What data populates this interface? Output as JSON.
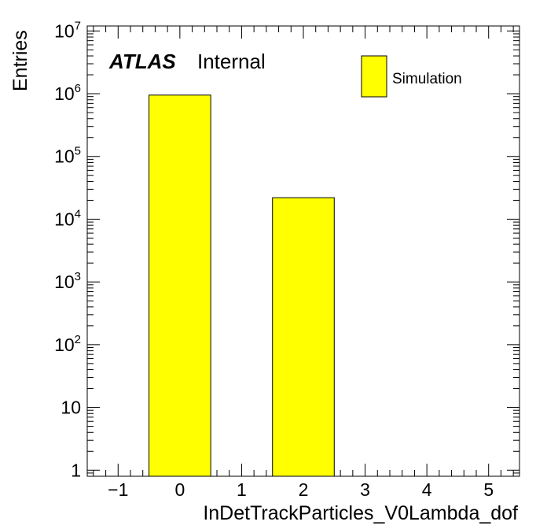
{
  "chart_data": {
    "type": "bar",
    "xlabel": "InDetTrackParticles_V0Lambda_dof",
    "ylabel": "Entries",
    "xlim": [
      -1.5,
      5.5
    ],
    "ylim": [
      0.8,
      12000000
    ],
    "yscale": "log",
    "bin_width": 1,
    "x": [
      0,
      2
    ],
    "values": [
      950000,
      22000
    ],
    "series": [
      {
        "name": "Simulation",
        "color": "#ffff00",
        "values": [
          950000,
          22000
        ]
      }
    ],
    "x_ticks": [
      "−1",
      "0",
      "1",
      "2",
      "3",
      "4",
      "5"
    ],
    "x_tick_values": [
      -1,
      0,
      1,
      2,
      3,
      4,
      5
    ],
    "y_ticks": [
      {
        "value": 1,
        "base": "1",
        "exp": ""
      },
      {
        "value": 10,
        "base": "10",
        "exp": ""
      },
      {
        "value": 100,
        "base": "10",
        "exp": "2"
      },
      {
        "value": 1000,
        "base": "10",
        "exp": "3"
      },
      {
        "value": 10000,
        "base": "10",
        "exp": "4"
      },
      {
        "value": 100000,
        "base": "10",
        "exp": "5"
      },
      {
        "value": 1000000,
        "base": "10",
        "exp": "6"
      },
      {
        "value": 10000000,
        "base": "10",
        "exp": "7"
      }
    ],
    "legend_position": "top-right",
    "grid": false
  },
  "label": {
    "experiment": "ATLAS",
    "status": "Internal"
  },
  "legend": {
    "label": "Simulation"
  }
}
